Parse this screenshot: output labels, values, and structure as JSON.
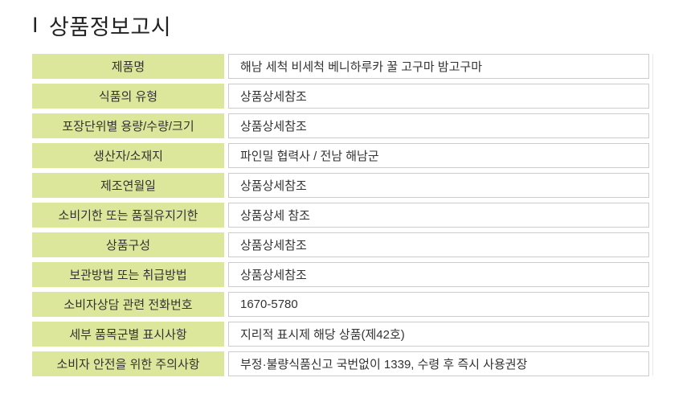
{
  "title": {
    "marker": "I",
    "text": "상품정보고시"
  },
  "colors": {
    "label_bg": "#dce79b",
    "cell_border": "#cccccc",
    "text": "#333333",
    "title_text": "#222222",
    "table_edge": "#ebebeb"
  },
  "table": {
    "rows": [
      {
        "label": "제품명",
        "value": "해남 세척 비세척 베니하루카 꿀 고구마 밤고구마"
      },
      {
        "label": "식품의 유형",
        "value": "상품상세참조"
      },
      {
        "label": "포장단위별 용량/수량/크기",
        "value": "상품상세참조"
      },
      {
        "label": "생산자/소재지",
        "value": "파인밀 협력사 / 전남 해남군"
      },
      {
        "label": "제조연월일",
        "value": "상품상세참조"
      },
      {
        "label": "소비기한 또는 품질유지기한",
        "value": "상품상세 참조"
      },
      {
        "label": "상품구성",
        "value": "상품상세참조"
      },
      {
        "label": "보관방법 또는 취급방법",
        "value": "상품상세참조"
      },
      {
        "label": "소비자상담 관련 전화번호",
        "value": "1670-5780"
      },
      {
        "label": "세부 품목군별 표시사항",
        "value": "지리적 표시제 해당 상품(제42호)"
      },
      {
        "label": "소비자 안전을 위한 주의사항",
        "value": "부정·불량식품신고 국번없이 1339, 수령 후 즉시 사용권장"
      }
    ]
  }
}
